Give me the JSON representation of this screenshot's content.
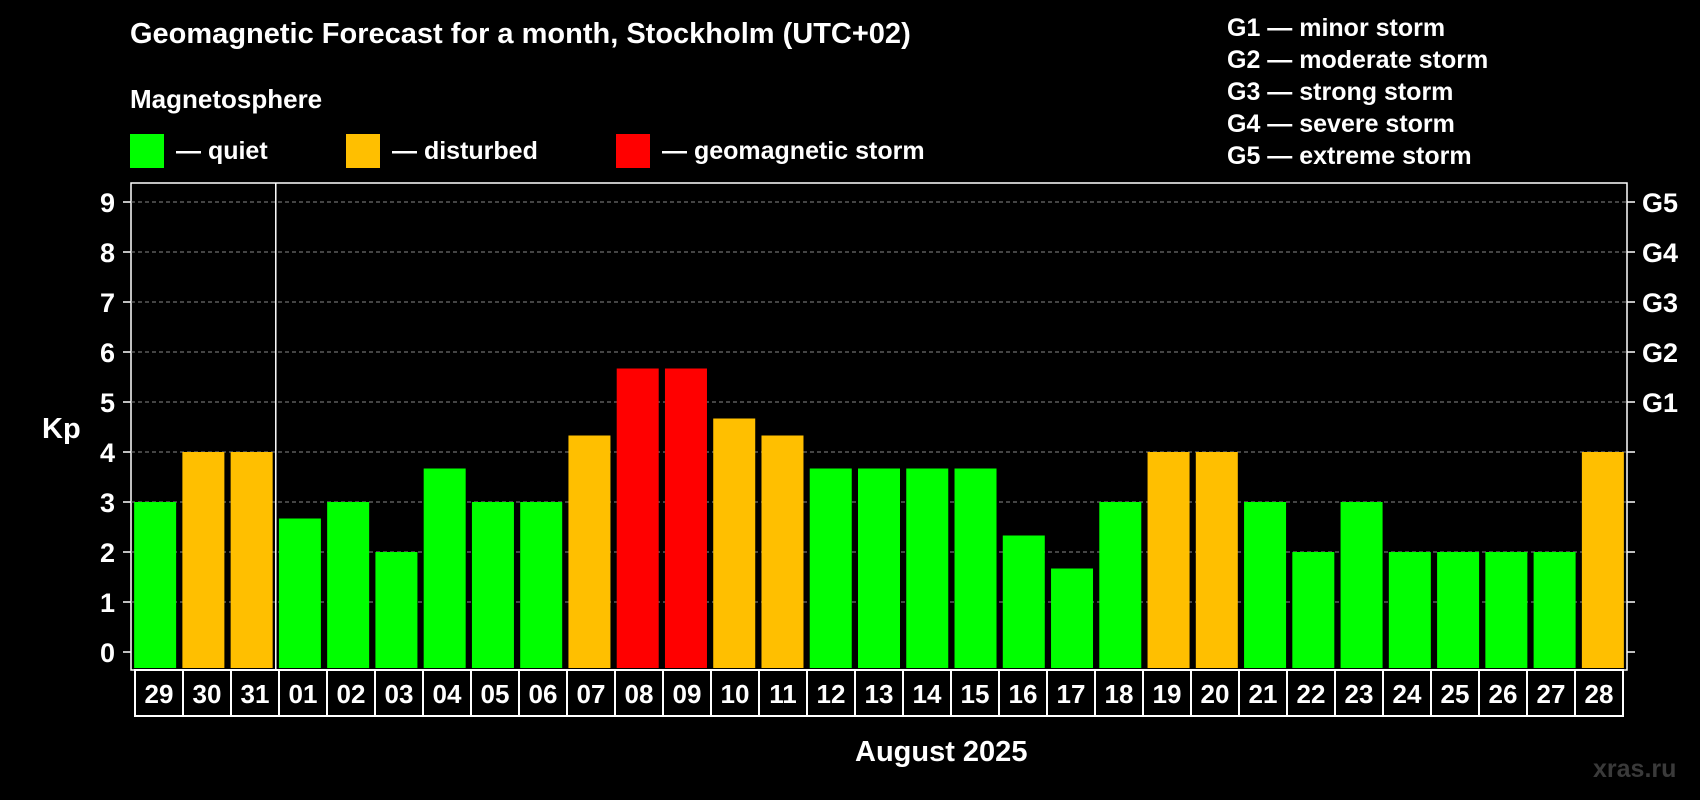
{
  "header": {
    "title": "Geomagnetic Forecast for a month, Stockholm (UTC+02)",
    "magnetosphere": "Magnetosphere"
  },
  "legend": [
    {
      "label": "— quiet",
      "color": "#00ff00"
    },
    {
      "label": "— disturbed",
      "color": "#ffbf00"
    },
    {
      "label": "— geomagnetic storm",
      "color": "#ff0000"
    }
  ],
  "storm_levels": [
    "G1 — minor storm",
    "G2 — moderate storm",
    "G3 — strong storm",
    "G4 — severe storm",
    "G5 — extreme storm"
  ],
  "watermark": "xras.ru",
  "chart_data": {
    "type": "bar",
    "title": "Geomagnetic Forecast for a month, Stockholm (UTC+02)",
    "xlabel": "August 2025",
    "ylabel": "Kp",
    "ylim": [
      0,
      9
    ],
    "yticks": [
      "0",
      "1",
      "2",
      "3",
      "4",
      "5",
      "6",
      "7",
      "8",
      "9"
    ],
    "right_axis_labels": [
      {
        "kp": 5,
        "label": "G1"
      },
      {
        "kp": 6,
        "label": "G2"
      },
      {
        "kp": 7,
        "label": "G3"
      },
      {
        "kp": 8,
        "label": "G4"
      },
      {
        "kp": 9,
        "label": "G5"
      }
    ],
    "grid": true,
    "month_separator_after": "31",
    "categories": [
      "29",
      "30",
      "31",
      "01",
      "02",
      "03",
      "04",
      "05",
      "06",
      "07",
      "08",
      "09",
      "10",
      "11",
      "12",
      "13",
      "14",
      "15",
      "16",
      "17",
      "18",
      "19",
      "20",
      "21",
      "22",
      "23",
      "24",
      "25",
      "26",
      "27",
      "28"
    ],
    "values": [
      3,
      4,
      4,
      2.67,
      3,
      2,
      3.67,
      3,
      3,
      4.33,
      5.67,
      5.67,
      4.67,
      4.33,
      3.67,
      3.67,
      3.67,
      3.67,
      2.33,
      1.67,
      3,
      4,
      4,
      3,
      2,
      3,
      2,
      2,
      2,
      2,
      4
    ],
    "status": [
      "quiet",
      "disturbed",
      "disturbed",
      "quiet",
      "quiet",
      "quiet",
      "quiet",
      "quiet",
      "quiet",
      "disturbed",
      "storm",
      "storm",
      "disturbed",
      "disturbed",
      "quiet",
      "quiet",
      "quiet",
      "quiet",
      "quiet",
      "quiet",
      "quiet",
      "disturbed",
      "disturbed",
      "quiet",
      "quiet",
      "quiet",
      "quiet",
      "quiet",
      "quiet",
      "quiet",
      "disturbed"
    ],
    "colors": {
      "quiet": "#00ff00",
      "disturbed": "#ffbf00",
      "storm": "#ff0000"
    }
  }
}
